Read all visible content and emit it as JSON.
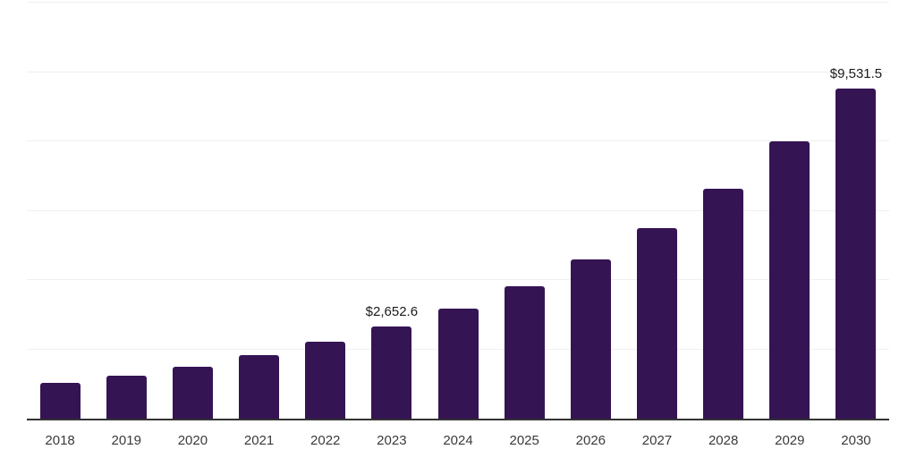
{
  "chart_data": {
    "type": "bar",
    "title": "",
    "xlabel": "",
    "ylabel": "",
    "legend": "none",
    "grid": "on",
    "ylim": [
      0,
      12000
    ],
    "gridline_step": 2000,
    "categories": [
      "2018",
      "2019",
      "2020",
      "2021",
      "2022",
      "2023",
      "2024",
      "2025",
      "2026",
      "2027",
      "2028",
      "2029",
      "2030"
    ],
    "values": [
      1040,
      1230,
      1510,
      1820,
      2210,
      2652.6,
      3170,
      3820,
      4590,
      5500,
      6620,
      8000,
      9531.5
    ],
    "data_labels": [
      null,
      null,
      null,
      null,
      null,
      "$2,652.6",
      null,
      null,
      null,
      null,
      null,
      null,
      "$9,531.5"
    ]
  },
  "colors": {
    "bar": "#351454",
    "axis": "#333333",
    "gridline": "#f0f0f0",
    "data_label": "#1a1a1a",
    "tick_label": "#3a3a3a",
    "background": "#ffffff"
  }
}
